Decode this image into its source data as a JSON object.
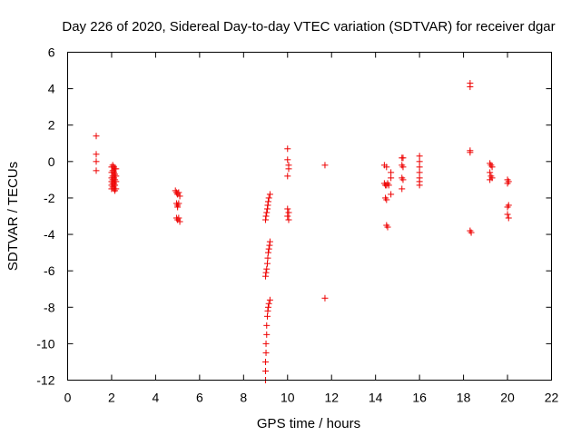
{
  "chart_data": {
    "type": "scatter",
    "title": "Day 226 of 2020, Sidereal Day-to-day VTEC variation (SDTVAR) for receiver dgar",
    "xlabel": "GPS time / hours",
    "ylabel": "SDTVAR / TECUs",
    "xlim": [
      0,
      22
    ],
    "ylim": [
      -12,
      6
    ],
    "xticks": [
      0,
      2,
      4,
      6,
      8,
      10,
      12,
      14,
      16,
      18,
      20,
      22
    ],
    "yticks": [
      -12,
      -10,
      -8,
      -6,
      -4,
      -2,
      0,
      2,
      4,
      6
    ],
    "grid": false,
    "legend": "none",
    "marker": "+",
    "color": "#ee0000",
    "series": [
      {
        "name": "SDTVAR",
        "points": [
          [
            1.3,
            1.4
          ],
          [
            1.3,
            0.4
          ],
          [
            1.3,
            0.0
          ],
          [
            1.3,
            -0.5
          ],
          [
            2.0,
            -0.3
          ],
          [
            2.0,
            -0.6
          ],
          [
            2.0,
            -0.9
          ],
          [
            2.0,
            -1.1
          ],
          [
            2.0,
            -1.3
          ],
          [
            2.0,
            -1.5
          ],
          [
            2.05,
            -0.2
          ],
          [
            2.05,
            -0.5
          ],
          [
            2.05,
            -0.8
          ],
          [
            2.05,
            -1.0
          ],
          [
            2.05,
            -1.2
          ],
          [
            2.05,
            -1.4
          ],
          [
            2.1,
            -0.3
          ],
          [
            2.1,
            -0.6
          ],
          [
            2.1,
            -0.9
          ],
          [
            2.1,
            -1.2
          ],
          [
            2.1,
            -1.5
          ],
          [
            2.15,
            -0.4
          ],
          [
            2.15,
            -0.7
          ],
          [
            2.15,
            -1.0
          ],
          [
            2.15,
            -1.3
          ],
          [
            2.15,
            -1.6
          ],
          [
            2.2,
            -0.4
          ],
          [
            2.2,
            -0.8
          ],
          [
            2.2,
            -1.1
          ],
          [
            2.2,
            -1.5
          ],
          [
            4.9,
            -1.6
          ],
          [
            4.95,
            -1.7
          ],
          [
            5.0,
            -1.8
          ],
          [
            5.05,
            -1.7
          ],
          [
            5.1,
            -1.9
          ],
          [
            4.95,
            -2.3
          ],
          [
            5.0,
            -2.4
          ],
          [
            5.05,
            -2.3
          ],
          [
            5.0,
            -2.5
          ],
          [
            4.95,
            -3.1
          ],
          [
            5.0,
            -3.2
          ],
          [
            5.05,
            -3.1
          ],
          [
            5.1,
            -3.3
          ],
          [
            9.0,
            -12.0
          ],
          [
            9.0,
            -11.5
          ],
          [
            9.0,
            -11.0
          ],
          [
            9.02,
            -10.5
          ],
          [
            9.02,
            -10.0
          ],
          [
            9.05,
            -9.5
          ],
          [
            9.05,
            -9.0
          ],
          [
            9.08,
            -8.5
          ],
          [
            9.1,
            -8.2
          ],
          [
            9.12,
            -8.0
          ],
          [
            9.15,
            -7.8
          ],
          [
            9.2,
            -7.6
          ],
          [
            9.0,
            -6.3
          ],
          [
            9.02,
            -6.1
          ],
          [
            9.05,
            -5.9
          ],
          [
            9.08,
            -5.6
          ],
          [
            9.1,
            -5.3
          ],
          [
            9.12,
            -5.0
          ],
          [
            9.15,
            -4.8
          ],
          [
            9.18,
            -4.6
          ],
          [
            9.2,
            -4.4
          ],
          [
            9.0,
            -3.2
          ],
          [
            9.02,
            -3.0
          ],
          [
            9.05,
            -2.8
          ],
          [
            9.08,
            -2.6
          ],
          [
            9.1,
            -2.4
          ],
          [
            9.12,
            -2.2
          ],
          [
            9.15,
            -2.0
          ],
          [
            9.2,
            -1.8
          ],
          [
            10.0,
            0.7
          ],
          [
            10.0,
            0.1
          ],
          [
            10.05,
            -0.2
          ],
          [
            10.05,
            -0.4
          ],
          [
            10.0,
            -0.8
          ],
          [
            10.0,
            -2.6
          ],
          [
            10.05,
            -2.8
          ],
          [
            10.0,
            -3.0
          ],
          [
            10.05,
            -3.2
          ],
          [
            11.7,
            -0.2
          ],
          [
            11.7,
            -7.5
          ],
          [
            14.4,
            -0.2
          ],
          [
            14.5,
            -0.3
          ],
          [
            14.4,
            -1.2
          ],
          [
            14.45,
            -1.3
          ],
          [
            14.5,
            -1.3
          ],
          [
            14.55,
            -1.2
          ],
          [
            14.6,
            -1.3
          ],
          [
            14.45,
            -2.0
          ],
          [
            14.5,
            -2.1
          ],
          [
            14.5,
            -3.5
          ],
          [
            14.55,
            -3.6
          ],
          [
            14.7,
            -0.6
          ],
          [
            14.7,
            -0.9
          ],
          [
            14.7,
            -1.8
          ],
          [
            15.2,
            0.2
          ],
          [
            15.25,
            0.2
          ],
          [
            15.2,
            -0.2
          ],
          [
            15.25,
            -0.3
          ],
          [
            15.2,
            -0.9
          ],
          [
            15.25,
            -1.0
          ],
          [
            15.2,
            -1.5
          ],
          [
            16.0,
            0.3
          ],
          [
            16.0,
            0.0
          ],
          [
            16.0,
            -0.3
          ],
          [
            16.0,
            -0.6
          ],
          [
            16.0,
            -0.9
          ],
          [
            16.0,
            -1.1
          ],
          [
            16.0,
            -1.3
          ],
          [
            18.3,
            4.3
          ],
          [
            18.3,
            4.1
          ],
          [
            18.3,
            0.5
          ],
          [
            18.3,
            0.6
          ],
          [
            18.3,
            -3.8
          ],
          [
            18.35,
            -3.9
          ],
          [
            19.2,
            -0.1
          ],
          [
            19.25,
            -0.2
          ],
          [
            19.3,
            -0.3
          ],
          [
            19.2,
            -0.6
          ],
          [
            19.25,
            -0.8
          ],
          [
            19.3,
            -0.9
          ],
          [
            19.2,
            -1.0
          ],
          [
            20.0,
            -1.0
          ],
          [
            20.05,
            -1.1
          ],
          [
            20.0,
            -1.2
          ],
          [
            20.0,
            -2.5
          ],
          [
            20.05,
            -2.4
          ],
          [
            20.0,
            -2.9
          ],
          [
            20.05,
            -3.1
          ]
        ]
      }
    ]
  }
}
